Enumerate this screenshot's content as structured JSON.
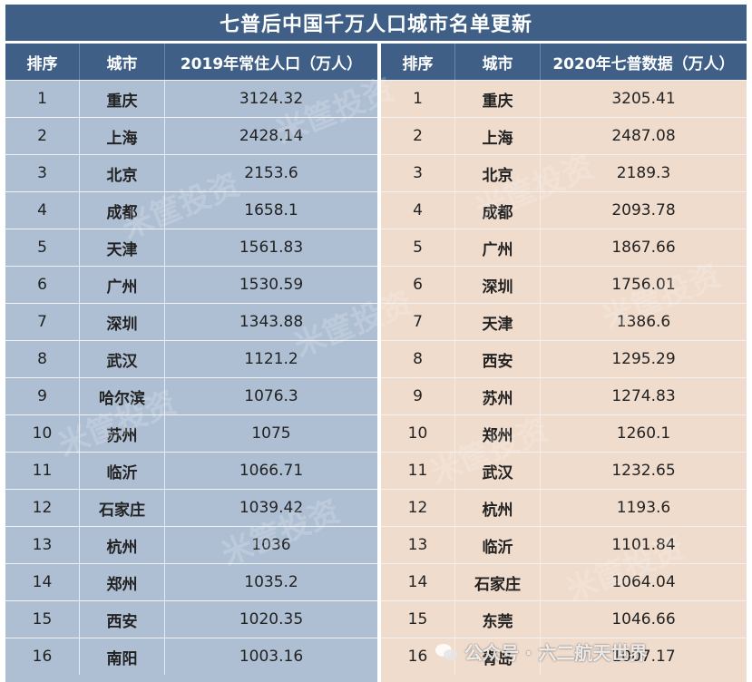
{
  "title": "七普后中国千万人口城市名单更新",
  "left": {
    "headers": [
      "排序",
      "城市",
      "2019年常住人口（万人）"
    ],
    "rows": [
      [
        "1",
        "重庆",
        "3124.32"
      ],
      [
        "2",
        "上海",
        "2428.14"
      ],
      [
        "3",
        "北京",
        "2153.6"
      ],
      [
        "4",
        "成都",
        "1658.1"
      ],
      [
        "5",
        "天津",
        "1561.83"
      ],
      [
        "6",
        "广州",
        "1530.59"
      ],
      [
        "7",
        "深圳",
        "1343.88"
      ],
      [
        "8",
        "武汉",
        "1121.2"
      ],
      [
        "9",
        "哈尔滨",
        "1076.3"
      ],
      [
        "10",
        "苏州",
        "1075"
      ],
      [
        "11",
        "临沂",
        "1066.71"
      ],
      [
        "12",
        "石家庄",
        "1039.42"
      ],
      [
        "13",
        "杭州",
        "1036"
      ],
      [
        "14",
        "郑州",
        "1035.2"
      ],
      [
        "15",
        "西安",
        "1020.35"
      ],
      [
        "16",
        "南阳",
        "1003.16"
      ]
    ]
  },
  "right": {
    "headers": [
      "排序",
      "城市",
      "2020年七普数据（万人）"
    ],
    "rows": [
      [
        "1",
        "重庆",
        "3205.41"
      ],
      [
        "2",
        "上海",
        "2487.08"
      ],
      [
        "3",
        "北京",
        "2189.3"
      ],
      [
        "4",
        "成都",
        "2093.78"
      ],
      [
        "5",
        "广州",
        "1867.66"
      ],
      [
        "6",
        "深圳",
        "1756.01"
      ],
      [
        "7",
        "天津",
        "1386.6"
      ],
      [
        "8",
        "西安",
        "1295.29"
      ],
      [
        "9",
        "苏州",
        "1274.83"
      ],
      [
        "10",
        "郑州",
        "1260.1"
      ],
      [
        "11",
        "武汉",
        "1232.65"
      ],
      [
        "12",
        "杭州",
        "1193.6"
      ],
      [
        "13",
        "临沂",
        "1101.84"
      ],
      [
        "14",
        "石家庄",
        "1064.04"
      ],
      [
        "15",
        "东莞",
        "1046.66"
      ],
      [
        "16",
        "青岛",
        "1007.17"
      ]
    ]
  },
  "watermark": "米筐投资",
  "footer": "公众号 · 六二航天世界",
  "colors": {
    "header_bg": "#3f5f86",
    "left_bg": "#aebfd3",
    "right_bg": "#efdccd"
  }
}
